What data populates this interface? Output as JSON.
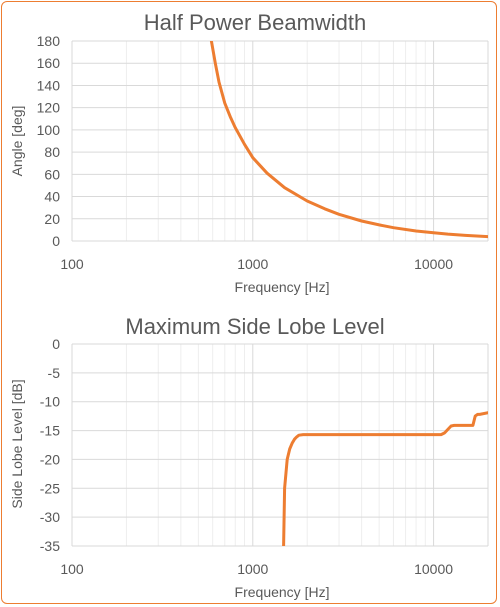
{
  "colors": {
    "series": "#ED7D31",
    "text": "#595959",
    "grid_major": "#d9d9d9",
    "grid_minor": "#eeeeee",
    "border": "#ED7D31"
  },
  "chart_data": [
    {
      "type": "line",
      "title": "Half Power Beamwidth",
      "xlabel": "Frequency [Hz]",
      "ylabel": "Angle [deg]",
      "xscale": "log",
      "xlim": [
        100,
        20000
      ],
      "ylim": [
        0,
        180
      ],
      "xticks": [
        100,
        1000,
        10000
      ],
      "xtick_labels": [
        "100",
        "1000",
        "10000"
      ],
      "yticks": [
        0,
        20,
        40,
        60,
        80,
        100,
        120,
        140,
        160,
        180
      ],
      "ytick_labels": [
        "0",
        "20",
        "40",
        "60",
        "80",
        "100",
        "120",
        "140",
        "160",
        "180"
      ],
      "grid": true,
      "series": [
        {
          "x": [
            590,
            620,
            650,
            700,
            750,
            800,
            900,
            1000,
            1200,
            1500,
            2000,
            2500,
            3000,
            4000,
            5000,
            6000,
            8000,
            10000,
            12000,
            15000,
            20000
          ],
          "y": [
            180,
            160,
            143,
            124,
            112,
            102,
            87,
            75,
            61,
            48,
            36,
            29,
            24,
            18,
            14.5,
            12,
            9,
            7.5,
            6.2,
            5,
            4
          ]
        }
      ]
    },
    {
      "type": "line",
      "title": "Maximum Side Lobe Level",
      "xlabel": "Frequency [Hz]",
      "ylabel": "Side Lobe Level [dB]",
      "xscale": "log",
      "xlim": [
        100,
        20000
      ],
      "ylim": [
        -35,
        0
      ],
      "xticks": [
        100,
        1000,
        10000
      ],
      "xtick_labels": [
        "100",
        "1000",
        "10000"
      ],
      "yticks": [
        0,
        -5,
        -10,
        -15,
        -20,
        -25,
        -30,
        -35
      ],
      "ytick_labels": [
        "0",
        "-5",
        "-10",
        "-15",
        "-20",
        "-25",
        "-30",
        "-35"
      ],
      "grid": true,
      "series": [
        {
          "x": [
            1480,
            1500,
            1550,
            1600,
            1650,
            1700,
            1750,
            1800,
            1900,
            2000,
            3000,
            5000,
            8000,
            10000,
            11000,
            11500,
            12000,
            12500,
            13000,
            16500,
            17000,
            17500,
            18000,
            20000
          ],
          "y": [
            -35,
            -25,
            -20,
            -18.2,
            -17.2,
            -16.5,
            -16.1,
            -15.8,
            -15.7,
            -15.7,
            -15.7,
            -15.7,
            -15.7,
            -15.7,
            -15.7,
            -15.4,
            -14.8,
            -14.2,
            -14.1,
            -14.1,
            -12.5,
            -12.2,
            -12.2,
            -11.9
          ]
        }
      ]
    }
  ]
}
